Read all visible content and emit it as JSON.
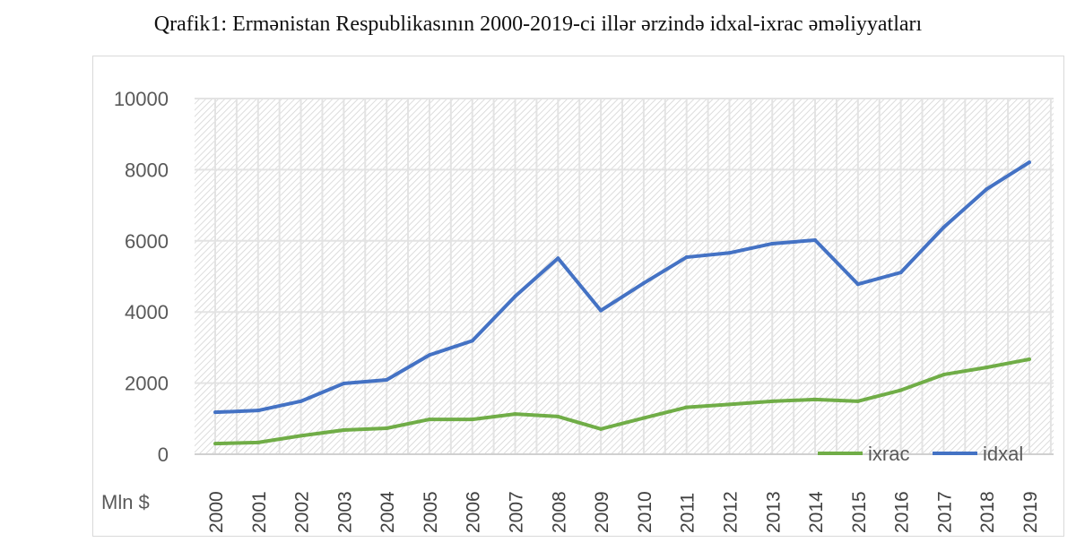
{
  "chart_data": {
    "type": "line",
    "title": "Qrafik1: Ermənistan Respublikasının 2000-2019-ci illər ərzində idxal-ixrac əməliyyatları",
    "ylabel": "Mln $",
    "xlabel": "",
    "ylim": [
      0,
      10000
    ],
    "yticks": [
      "0",
      "2000",
      "4000",
      "6000",
      "8000",
      "10000"
    ],
    "categories": [
      "2000",
      "2001",
      "2002",
      "2003",
      "2004",
      "2005",
      "2006",
      "2007",
      "2008",
      "2009",
      "2010",
      "2011",
      "2012",
      "2013",
      "2014",
      "2015",
      "2016",
      "2017",
      "2018",
      "2019"
    ],
    "grid": true,
    "legend_position": "bottom-right",
    "series": [
      {
        "name": "ixrac",
        "color": "#70ad47",
        "values": [
          300,
          330,
          520,
          680,
          730,
          980,
          980,
          1130,
          1060,
          710,
          1020,
          1320,
          1400,
          1490,
          1540,
          1490,
          1800,
          2240,
          2440,
          2670
        ]
      },
      {
        "name": "idxal",
        "color": "#4472c4",
        "values": [
          1180,
          1230,
          1490,
          1990,
          2090,
          2790,
          3190,
          4440,
          5510,
          4040,
          4810,
          5540,
          5660,
          5920,
          6020,
          4780,
          5110,
          6380,
          7450,
          8210
        ]
      }
    ]
  }
}
